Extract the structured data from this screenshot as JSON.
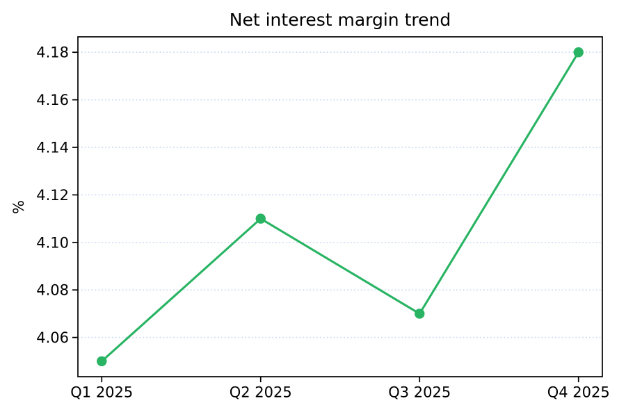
{
  "chart_data": {
    "type": "line",
    "title": "Net interest margin trend",
    "xlabel": "",
    "ylabel": "%",
    "categories": [
      "Q1 2025",
      "Q2 2025",
      "Q3 2025",
      "Q4 2025"
    ],
    "values": [
      4.05,
      4.11,
      4.07,
      4.18
    ],
    "yticks": [
      "4.06",
      "4.08",
      "4.10",
      "4.12",
      "4.14",
      "4.16",
      "4.18"
    ],
    "ylim": [
      4.0435,
      4.1865
    ],
    "grid": "horizontal dotted lines only",
    "legend": "none",
    "marker": "circle",
    "colors": {
      "line": "#28b463",
      "grid": "#ccdaf2",
      "axis": "#000000",
      "text": "#000000",
      "background": "#ffffff"
    }
  }
}
